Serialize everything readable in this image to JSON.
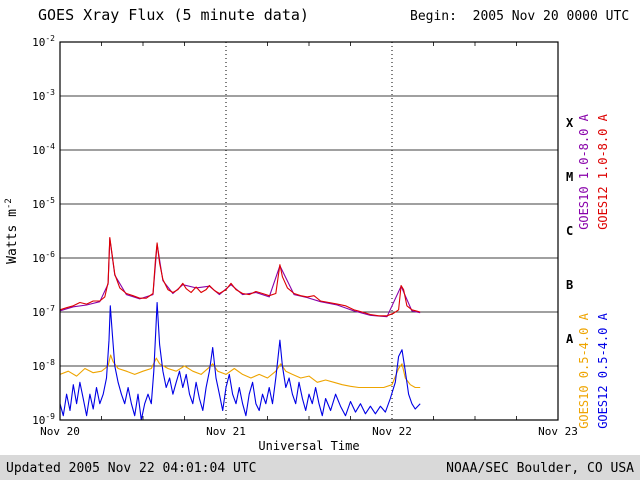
{
  "page": {
    "begin_label": "Begin:  2005 Nov 20 0000 UTC",
    "updated_label": "Updated 2005 Nov 22 04:01:04 UTC",
    "credit_label": "NOAA/SEC Boulder, CO USA"
  },
  "chart_data": {
    "type": "line",
    "title": "GOES Xray Flux (5 minute data)",
    "xlabel": "Universal Time",
    "ylabel": {
      "base": "Watts m",
      "exponent": "-2"
    },
    "x_axis": {
      "tick_labels": [
        "Nov 20",
        "Nov 21",
        "Nov 22",
        "Nov 23"
      ],
      "range_days": [
        0,
        3
      ],
      "minor_tick_hours": 6,
      "dotted_gridlines_days": [
        1,
        2
      ]
    },
    "y_axis": {
      "scale": "log",
      "exponent_range": [
        -9,
        -2
      ],
      "tick_exponents": [
        -2,
        -3,
        -4,
        -5,
        -6,
        -7,
        -8,
        -9
      ]
    },
    "flare_classes": [
      {
        "label": "X",
        "exp_mid": -3.5
      },
      {
        "label": "M",
        "exp_mid": -4.5
      },
      {
        "label": "C",
        "exp_mid": -5.5
      },
      {
        "label": "B",
        "exp_mid": -6.5
      },
      {
        "label": "A",
        "exp_mid": -7.5
      }
    ],
    "series": [
      {
        "name": "GOES10 1.0-8.0 A",
        "color": "#8800aa",
        "points": [
          [
            0.0,
            1.05e-07
          ],
          [
            0.08,
            1.25e-07
          ],
          [
            0.16,
            1.35e-07
          ],
          [
            0.24,
            1.55e-07
          ],
          [
            0.29,
            3.3e-07
          ],
          [
            0.3,
            2.3e-06
          ],
          [
            0.33,
            4.8e-07
          ],
          [
            0.4,
            2.1e-07
          ],
          [
            0.48,
            1.75e-07
          ],
          [
            0.56,
            2.1e-07
          ],
          [
            0.585,
            1.8e-06
          ],
          [
            0.62,
            3.8e-07
          ],
          [
            0.68,
            2.2e-07
          ],
          [
            0.74,
            3.2e-07
          ],
          [
            0.82,
            2.8e-07
          ],
          [
            0.9,
            3e-07
          ],
          [
            0.96,
            2.1e-07
          ],
          [
            1.03,
            3.2e-07
          ],
          [
            1.1,
            2.1e-07
          ],
          [
            1.18,
            2.3e-07
          ],
          [
            1.26,
            1.9e-07
          ],
          [
            1.325,
            7.2e-07
          ],
          [
            1.41,
            2.1e-07
          ],
          [
            1.49,
            1.85e-07
          ],
          [
            1.57,
            1.55e-07
          ],
          [
            1.67,
            1.35e-07
          ],
          [
            1.77,
            1.05e-07
          ],
          [
            1.87,
            8.7e-08
          ],
          [
            1.97,
            8.2e-08
          ],
          [
            2.055,
            3e-07
          ],
          [
            2.12,
            1.05e-07
          ],
          [
            2.17,
            9.7e-08
          ]
        ]
      },
      {
        "name": "GOES12 1.0-8.0 A",
        "color": "#dd0000",
        "points": [
          [
            0.0,
            1.1e-07
          ],
          [
            0.04,
            1.2e-07
          ],
          [
            0.08,
            1.3e-07
          ],
          [
            0.12,
            1.5e-07
          ],
          [
            0.16,
            1.4e-07
          ],
          [
            0.2,
            1.6e-07
          ],
          [
            0.24,
            1.6e-07
          ],
          [
            0.27,
            1.9e-07
          ],
          [
            0.29,
            3.5e-07
          ],
          [
            0.3,
            2.4e-06
          ],
          [
            0.315,
            1.1e-06
          ],
          [
            0.33,
            5e-07
          ],
          [
            0.36,
            2.8e-07
          ],
          [
            0.4,
            2.2e-07
          ],
          [
            0.44,
            2e-07
          ],
          [
            0.48,
            1.8e-07
          ],
          [
            0.52,
            1.8e-07
          ],
          [
            0.56,
            2.2e-07
          ],
          [
            0.575,
            9e-07
          ],
          [
            0.585,
            1.9e-06
          ],
          [
            0.6,
            8e-07
          ],
          [
            0.62,
            4e-07
          ],
          [
            0.65,
            2.6e-07
          ],
          [
            0.68,
            2.3e-07
          ],
          [
            0.71,
            2.6e-07
          ],
          [
            0.74,
            3.4e-07
          ],
          [
            0.76,
            2.7e-07
          ],
          [
            0.79,
            2.3e-07
          ],
          [
            0.82,
            2.9e-07
          ],
          [
            0.85,
            2.3e-07
          ],
          [
            0.88,
            2.6e-07
          ],
          [
            0.9,
            3.1e-07
          ],
          [
            0.93,
            2.5e-07
          ],
          [
            0.96,
            2.2e-07
          ],
          [
            1.0,
            2.6e-07
          ],
          [
            1.03,
            3.4e-07
          ],
          [
            1.06,
            2.6e-07
          ],
          [
            1.1,
            2.2e-07
          ],
          [
            1.14,
            2.1e-07
          ],
          [
            1.18,
            2.4e-07
          ],
          [
            1.22,
            2.2e-07
          ],
          [
            1.26,
            2e-07
          ],
          [
            1.3,
            2.2e-07
          ],
          [
            1.325,
            7.5e-07
          ],
          [
            1.34,
            4.5e-07
          ],
          [
            1.37,
            2.8e-07
          ],
          [
            1.41,
            2.2e-07
          ],
          [
            1.45,
            2e-07
          ],
          [
            1.49,
            1.9e-07
          ],
          [
            1.53,
            2e-07
          ],
          [
            1.57,
            1.6e-07
          ],
          [
            1.62,
            1.5e-07
          ],
          [
            1.67,
            1.4e-07
          ],
          [
            1.72,
            1.3e-07
          ],
          [
            1.77,
            1.1e-07
          ],
          [
            1.82,
            1e-07
          ],
          [
            1.87,
            9e-08
          ],
          [
            1.92,
            8.5e-08
          ],
          [
            1.97,
            8.5e-08
          ],
          [
            2.01,
            9.5e-08
          ],
          [
            2.04,
            1.1e-07
          ],
          [
            2.055,
            3.1e-07
          ],
          [
            2.07,
            2.6e-07
          ],
          [
            2.09,
            1.3e-07
          ],
          [
            2.12,
            1.1e-07
          ],
          [
            2.17,
            1e-07
          ]
        ]
      },
      {
        "name": "GOES10 0.5-4.0 A",
        "color": "#eea400",
        "points": [
          [
            0.0,
            7e-09
          ],
          [
            0.05,
            8e-09
          ],
          [
            0.1,
            6.5e-09
          ],
          [
            0.15,
            9e-09
          ],
          [
            0.2,
            7.5e-09
          ],
          [
            0.25,
            8e-09
          ],
          [
            0.29,
            1e-08
          ],
          [
            0.305,
            1.6e-08
          ],
          [
            0.32,
            1.2e-08
          ],
          [
            0.35,
            9e-09
          ],
          [
            0.4,
            8e-09
          ],
          [
            0.45,
            7e-09
          ],
          [
            0.5,
            8e-09
          ],
          [
            0.55,
            9e-09
          ],
          [
            0.58,
            1.4e-08
          ],
          [
            0.6,
            1.1e-08
          ],
          [
            0.65,
            9e-09
          ],
          [
            0.7,
            8e-09
          ],
          [
            0.75,
            1e-08
          ],
          [
            0.8,
            8e-09
          ],
          [
            0.85,
            7e-09
          ],
          [
            0.9,
            9.5e-09
          ],
          [
            0.92,
            1.1e-08
          ],
          [
            0.95,
            8e-09
          ],
          [
            1.0,
            7e-09
          ],
          [
            1.05,
            9e-09
          ],
          [
            1.1,
            7e-09
          ],
          [
            1.15,
            6e-09
          ],
          [
            1.2,
            7e-09
          ],
          [
            1.25,
            6e-09
          ],
          [
            1.3,
            8e-09
          ],
          [
            1.33,
            1.1e-08
          ],
          [
            1.36,
            8e-09
          ],
          [
            1.4,
            7e-09
          ],
          [
            1.45,
            6e-09
          ],
          [
            1.5,
            6.5e-09
          ],
          [
            1.55,
            5e-09
          ],
          [
            1.6,
            5.5e-09
          ],
          [
            1.65,
            5e-09
          ],
          [
            1.7,
            4.5e-09
          ],
          [
            1.75,
            4.2e-09
          ],
          [
            1.8,
            4e-09
          ],
          [
            1.85,
            4e-09
          ],
          [
            1.9,
            4e-09
          ],
          [
            1.95,
            4e-09
          ],
          [
            2.0,
            4.5e-09
          ],
          [
            2.04,
            9e-09
          ],
          [
            2.06,
            1.1e-08
          ],
          [
            2.08,
            6e-09
          ],
          [
            2.11,
            4.5e-09
          ],
          [
            2.14,
            4e-09
          ],
          [
            2.17,
            4e-09
          ]
        ]
      },
      {
        "name": "GOES12 0.5-4.0 A",
        "color": "#0000e6",
        "points": [
          [
            0.0,
            2e-09
          ],
          [
            0.02,
            1.2e-09
          ],
          [
            0.04,
            3e-09
          ],
          [
            0.06,
            1.5e-09
          ],
          [
            0.08,
            4.5e-09
          ],
          [
            0.1,
            2e-09
          ],
          [
            0.12,
            5e-09
          ],
          [
            0.14,
            2.5e-09
          ],
          [
            0.16,
            1.2e-09
          ],
          [
            0.18,
            3e-09
          ],
          [
            0.2,
            1.6e-09
          ],
          [
            0.22,
            4e-09
          ],
          [
            0.24,
            2e-09
          ],
          [
            0.26,
            3e-09
          ],
          [
            0.28,
            6e-09
          ],
          [
            0.295,
            3e-08
          ],
          [
            0.303,
            1.3e-07
          ],
          [
            0.315,
            4e-08
          ],
          [
            0.33,
            1e-08
          ],
          [
            0.35,
            5e-09
          ],
          [
            0.37,
            3e-09
          ],
          [
            0.39,
            2e-09
          ],
          [
            0.41,
            4e-09
          ],
          [
            0.43,
            2e-09
          ],
          [
            0.45,
            1.2e-09
          ],
          [
            0.47,
            3e-09
          ],
          [
            0.49,
            1e-09
          ],
          [
            0.51,
            2e-09
          ],
          [
            0.53,
            3e-09
          ],
          [
            0.55,
            2e-09
          ],
          [
            0.565,
            8e-09
          ],
          [
            0.578,
            5e-08
          ],
          [
            0.585,
            1.5e-07
          ],
          [
            0.6,
            2.5e-08
          ],
          [
            0.62,
            8e-09
          ],
          [
            0.64,
            4e-09
          ],
          [
            0.66,
            6e-09
          ],
          [
            0.68,
            3e-09
          ],
          [
            0.7,
            5e-09
          ],
          [
            0.72,
            8e-09
          ],
          [
            0.74,
            4e-09
          ],
          [
            0.76,
            7e-09
          ],
          [
            0.78,
            3e-09
          ],
          [
            0.8,
            2e-09
          ],
          [
            0.82,
            5e-09
          ],
          [
            0.84,
            2.5e-09
          ],
          [
            0.86,
            1.5e-09
          ],
          [
            0.88,
            4e-09
          ],
          [
            0.9,
            8e-09
          ],
          [
            0.92,
            2.2e-08
          ],
          [
            0.94,
            6e-09
          ],
          [
            0.96,
            3e-09
          ],
          [
            0.98,
            1.5e-09
          ],
          [
            1.0,
            4e-09
          ],
          [
            1.02,
            7e-09
          ],
          [
            1.04,
            3e-09
          ],
          [
            1.06,
            2e-09
          ],
          [
            1.08,
            4e-09
          ],
          [
            1.1,
            2e-09
          ],
          [
            1.12,
            1.2e-09
          ],
          [
            1.14,
            3e-09
          ],
          [
            1.16,
            5e-09
          ],
          [
            1.18,
            2e-09
          ],
          [
            1.2,
            1.5e-09
          ],
          [
            1.22,
            3e-09
          ],
          [
            1.24,
            2e-09
          ],
          [
            1.26,
            4e-09
          ],
          [
            1.28,
            2e-09
          ],
          [
            1.3,
            6e-09
          ],
          [
            1.325,
            3e-08
          ],
          [
            1.34,
            1e-08
          ],
          [
            1.36,
            4e-09
          ],
          [
            1.38,
            6e-09
          ],
          [
            1.4,
            3e-09
          ],
          [
            1.42,
            2e-09
          ],
          [
            1.44,
            5e-09
          ],
          [
            1.46,
            2.5e-09
          ],
          [
            1.48,
            1.5e-09
          ],
          [
            1.5,
            3e-09
          ],
          [
            1.52,
            2e-09
          ],
          [
            1.54,
            4e-09
          ],
          [
            1.56,
            2e-09
          ],
          [
            1.58,
            1.2e-09
          ],
          [
            1.6,
            2.5e-09
          ],
          [
            1.63,
            1.5e-09
          ],
          [
            1.66,
            3e-09
          ],
          [
            1.69,
            1.8e-09
          ],
          [
            1.72,
            1.2e-09
          ],
          [
            1.75,
            2.2e-09
          ],
          [
            1.78,
            1.4e-09
          ],
          [
            1.81,
            2e-09
          ],
          [
            1.84,
            1.3e-09
          ],
          [
            1.87,
            1.8e-09
          ],
          [
            1.9,
            1.3e-09
          ],
          [
            1.93,
            1.8e-09
          ],
          [
            1.96,
            1.4e-09
          ],
          [
            1.99,
            2.5e-09
          ],
          [
            2.02,
            5e-09
          ],
          [
            2.04,
            1.5e-08
          ],
          [
            2.06,
            2e-08
          ],
          [
            2.08,
            8e-09
          ],
          [
            2.1,
            3e-09
          ],
          [
            2.12,
            2e-09
          ],
          [
            2.14,
            1.6e-09
          ],
          [
            2.17,
            2e-09
          ]
        ]
      }
    ]
  }
}
